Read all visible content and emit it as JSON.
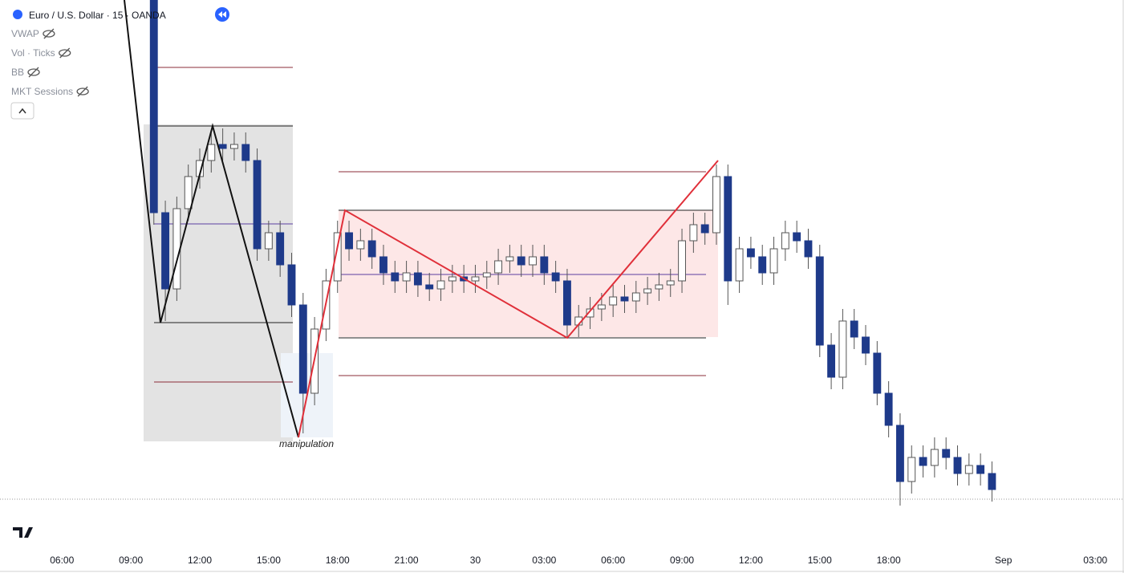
{
  "chart_data": {
    "type": "candlestick",
    "title": "Euro / U.S. Dollar · 15 · OANDA",
    "indicators": [
      "VWAP",
      "Vol · Ticks",
      "BB",
      "MKT Sessions"
    ],
    "annotation": "manipulation",
    "up_color": "#ffffff",
    "down_color": "#1e3a8a",
    "wick_color": "#555555",
    "open": [
      128,
      75,
      56,
      76,
      84,
      88,
      92,
      91,
      92,
      88,
      66,
      70,
      62,
      52,
      30,
      46,
      58,
      70,
      66,
      68,
      64,
      60,
      58,
      60,
      57,
      56,
      58,
      59,
      58,
      59,
      60,
      63,
      64,
      62,
      64,
      60,
      58,
      47,
      49,
      51,
      52,
      54,
      53,
      55,
      56,
      57,
      58,
      68,
      72,
      70,
      84,
      58,
      66,
      64,
      60,
      66,
      70,
      68,
      64,
      42,
      34,
      48,
      44,
      40,
      30,
      22,
      8,
      14,
      12,
      16,
      14,
      10,
      12,
      10
    ],
    "high": [
      128,
      78,
      79,
      87,
      91,
      95,
      96,
      95,
      95,
      91,
      73,
      73,
      65,
      55,
      49,
      61,
      73,
      73,
      71,
      71,
      67,
      63,
      63,
      63,
      60,
      61,
      62,
      62,
      62,
      63,
      66,
      67,
      67,
      67,
      67,
      63,
      61,
      52,
      54,
      55,
      57,
      57,
      58,
      59,
      60,
      61,
      71,
      75,
      75,
      87,
      87,
      69,
      69,
      67,
      69,
      73,
      73,
      71,
      67,
      45,
      51,
      51,
      47,
      43,
      33,
      25,
      17,
      17,
      19,
      19,
      17,
      15,
      15,
      13
    ],
    "low": [
      72,
      48,
      53,
      73,
      81,
      85,
      88,
      88,
      85,
      63,
      63,
      59,
      49,
      20,
      27,
      43,
      55,
      63,
      63,
      61,
      57,
      55,
      55,
      54,
      53,
      53,
      55,
      55,
      55,
      56,
      57,
      60,
      59,
      59,
      57,
      55,
      44,
      44,
      46,
      48,
      49,
      50,
      50,
      52,
      53,
      54,
      55,
      65,
      67,
      67,
      52,
      55,
      61,
      57,
      57,
      63,
      65,
      61,
      39,
      31,
      31,
      41,
      37,
      27,
      19,
      2,
      5,
      9,
      9,
      11,
      7,
      7,
      7,
      3
    ],
    "close": [
      75,
      56,
      76,
      84,
      88,
      92,
      91,
      92,
      88,
      66,
      70,
      62,
      52,
      30,
      46,
      58,
      70,
      66,
      68,
      64,
      60,
      58,
      60,
      57,
      56,
      58,
      59,
      58,
      59,
      60,
      63,
      64,
      62,
      64,
      60,
      58,
      47,
      49,
      51,
      52,
      54,
      53,
      55,
      56,
      57,
      58,
      68,
      72,
      70,
      84,
      58,
      66,
      64,
      60,
      66,
      70,
      68,
      64,
      42,
      34,
      48,
      44,
      40,
      30,
      22,
      8,
      14,
      12,
      16,
      14,
      10,
      12,
      10,
      6
    ],
    "ylim": [
      0,
      128
    ],
    "xlim": [
      -13.4,
      84.5
    ],
    "xticks": [
      {
        "value": -8,
        "label": "06:00"
      },
      {
        "value": -2,
        "label": "09:00"
      },
      {
        "value": 4,
        "label": "12:00"
      },
      {
        "value": 10,
        "label": "15:00"
      },
      {
        "value": 16,
        "label": "18:00"
      },
      {
        "value": 22,
        "label": "21:00"
      },
      {
        "value": 28,
        "label": "30"
      },
      {
        "value": 34,
        "label": "03:00"
      },
      {
        "value": 40,
        "label": "06:00"
      },
      {
        "value": 46,
        "label": "09:00"
      },
      {
        "value": 52,
        "label": "12:00"
      },
      {
        "value": 58,
        "label": "15:00"
      },
      {
        "value": 64,
        "label": "18:00"
      },
      {
        "value": 74,
        "label": "Sep"
      },
      {
        "value": 82,
        "label": "03:00"
      }
    ]
  }
}
